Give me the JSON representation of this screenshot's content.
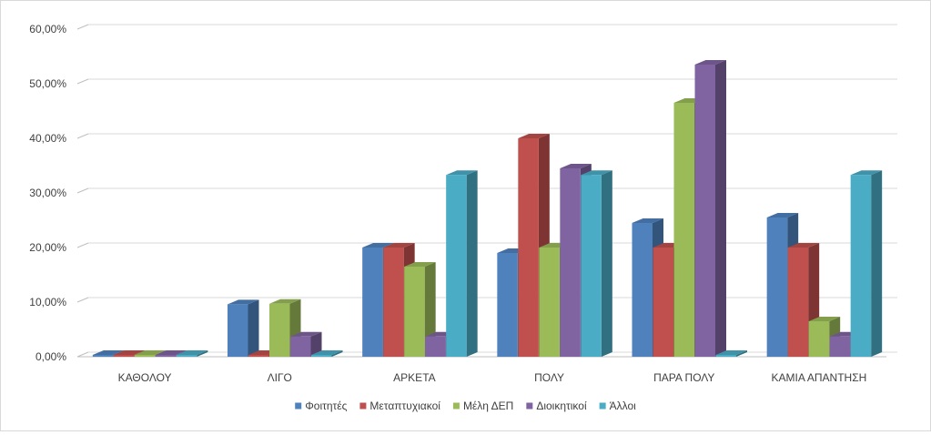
{
  "chart_data": {
    "type": "bar",
    "title": "",
    "xlabel": "",
    "ylabel": "",
    "ylim": [
      0,
      0.6
    ],
    "yticks": [
      0,
      0.1,
      0.2,
      0.3,
      0.4,
      0.5,
      0.6
    ],
    "ytick_labels": [
      "0,00%",
      "10,00%",
      "20,00%",
      "30,00%",
      "40,00%",
      "50,00%",
      "60,00%"
    ],
    "grid": true,
    "legend_position": "bottom",
    "style": "3d-clustered-column",
    "categories": [
      "ΚΑΘΟΛΟΥ",
      "ΛΙΓΟ",
      "ΑΡΚΕΤΑ",
      "ΠΟΛΥ",
      "ΠΑΡΑ ΠΟΛΥ",
      "ΚΑΜΙΑ ΑΠΑΝΤΗΣΗ"
    ],
    "series": [
      {
        "name": "Φοιτητές",
        "color": "#4F81BD",
        "values": [
          0,
          0.096,
          0.2,
          0.19,
          0.245,
          0.255
        ]
      },
      {
        "name": "Μεταπτυχιακοί",
        "color": "#C0504D",
        "values": [
          0,
          0,
          0.2,
          0.4,
          0.2,
          0.2
        ]
      },
      {
        "name": "Μέλη ΔΕΠ",
        "color": "#9BBB59",
        "values": [
          0,
          0.097,
          0.165,
          0.2,
          0.465,
          0.065
        ]
      },
      {
        "name": "Διοικητικοί",
        "color": "#8064A2",
        "values": [
          0,
          0.037,
          0.037,
          0.345,
          0.535,
          0.037
        ]
      },
      {
        "name": "Άλλοι",
        "color": "#4BACC6",
        "values": [
          0,
          0,
          0.333,
          0.333,
          0,
          0.333
        ]
      }
    ]
  }
}
